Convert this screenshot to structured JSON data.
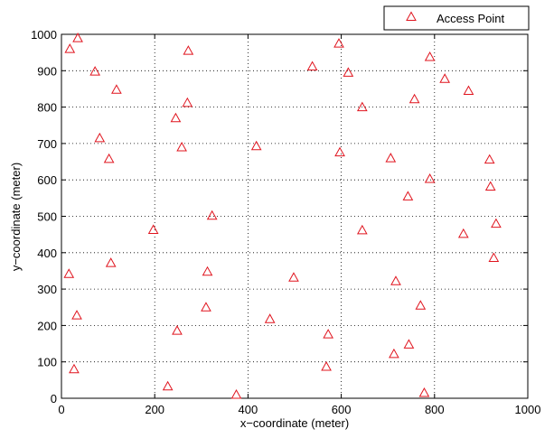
{
  "chart_data": {
    "type": "scatter",
    "xlabel": "x−coordinate (meter)",
    "ylabel": "y−coordinate (meter)",
    "xlim": [
      0,
      1000
    ],
    "ylim": [
      0,
      1000
    ],
    "xticks": [
      "0",
      "200",
      "400",
      "600",
      "800",
      "1000"
    ],
    "yticks": [
      "0",
      "100",
      "200",
      "300",
      "400",
      "500",
      "600",
      "700",
      "800",
      "900",
      "1000"
    ],
    "grid": true,
    "legend_position": "top-right",
    "series": [
      {
        "name": "Access Point",
        "marker": "triangle",
        "color": "#e0141e",
        "points": [
          [
            35,
            990
          ],
          [
            18,
            960
          ],
          [
            72,
            898
          ],
          [
            118,
            848
          ],
          [
            82,
            715
          ],
          [
            102,
            658
          ],
          [
            16,
            342
          ],
          [
            106,
            372
          ],
          [
            33,
            228
          ],
          [
            27,
            80
          ],
          [
            197,
            463
          ],
          [
            272,
            955
          ],
          [
            270,
            812
          ],
          [
            245,
            770
          ],
          [
            258,
            690
          ],
          [
            323,
            502
          ],
          [
            313,
            348
          ],
          [
            310,
            250
          ],
          [
            248,
            186
          ],
          [
            228,
            33
          ],
          [
            375,
            10
          ],
          [
            418,
            693
          ],
          [
            447,
            218
          ],
          [
            498,
            332
          ],
          [
            538,
            912
          ],
          [
            595,
            975
          ],
          [
            615,
            895
          ],
          [
            645,
            800
          ],
          [
            597,
            676
          ],
          [
            645,
            462
          ],
          [
            572,
            176
          ],
          [
            568,
            87
          ],
          [
            706,
            660
          ],
          [
            757,
            822
          ],
          [
            743,
            555
          ],
          [
            717,
            322
          ],
          [
            770,
            255
          ],
          [
            745,
            148
          ],
          [
            713,
            122
          ],
          [
            778,
            15
          ],
          [
            790,
            938
          ],
          [
            822,
            878
          ],
          [
            873,
            845
          ],
          [
            790,
            603
          ],
          [
            918,
            656
          ],
          [
            920,
            582
          ],
          [
            932,
            480
          ],
          [
            862,
            452
          ],
          [
            927,
            386
          ]
        ]
      }
    ]
  }
}
